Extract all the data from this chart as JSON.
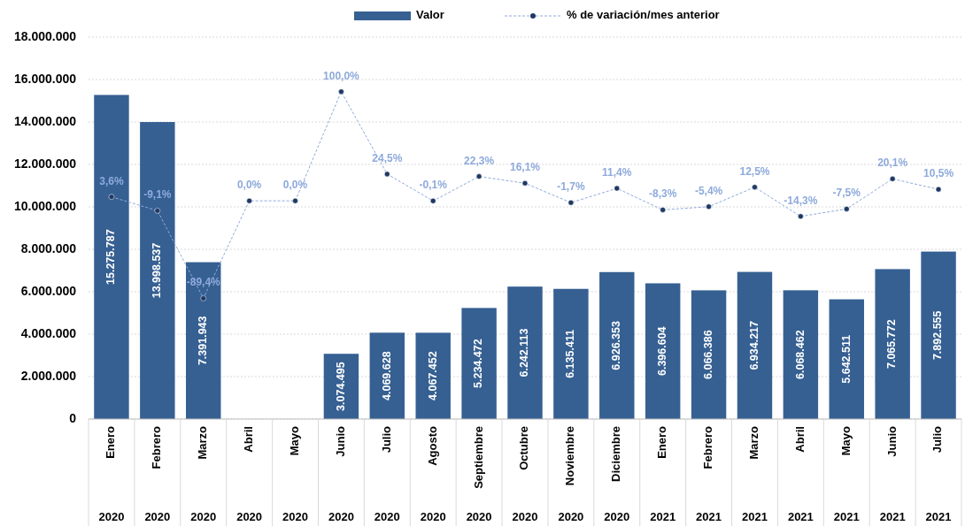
{
  "chart_data": {
    "type": "bar",
    "categories": [
      "Enero\n2020",
      "Febrero\n2020",
      "Marzo\n2020",
      "Abril\n2020",
      "Mayo\n2020",
      "Junio\n2020",
      "Julio\n2020",
      "Agosto\n2020",
      "Septiembre\n2020",
      "Octubre\n2020",
      "Noviembre\n2020",
      "Diciembre\n2020",
      "Enero\n2021",
      "Febrero\n2021",
      "Marzo\n2021",
      "Abril\n2021",
      "Mayo\n2021",
      "Junio\n2021",
      "Julio\n2021"
    ],
    "series": [
      {
        "name": "Valor",
        "color": "#366092",
        "values": [
          15275787,
          13998537,
          7391943,
          null,
          null,
          3074495,
          4069628,
          4067452,
          5234472,
          6242113,
          6135411,
          6926353,
          6396604,
          6066386,
          6934217,
          6068462,
          5642511,
          7065772,
          7892555
        ],
        "value_labels": [
          "15.275.787",
          "13.998.537",
          "7.391.943",
          null,
          null,
          "3.074.495",
          "4.069.628",
          "4.067.452",
          "5.234.472",
          "6.242.113",
          "6.135.411",
          "6.926.353",
          "6.396.604",
          "6.066.386",
          "6.934.217",
          "6.068.462",
          "5.642.511",
          "7.065.772",
          "7.892.555"
        ]
      },
      {
        "name": "% de variación/mes anterior",
        "type": "line",
        "axis": "y2",
        "color": "#8eaadb",
        "values": [
          3.6,
          -9.1,
          -89.4,
          0.0,
          0.0,
          100.0,
          24.5,
          -0.1,
          22.3,
          16.1,
          -1.7,
          11.4,
          -8.3,
          -5.4,
          12.5,
          -14.3,
          -7.5,
          20.1,
          10.5
        ],
        "value_labels": [
          "3,6%",
          "-9,1%",
          "-89,4%",
          "0,0%",
          "0,0%",
          "100,0%",
          "24,5%",
          "-0,1%",
          "22,3%",
          "16,1%",
          "-1,7%",
          "11,4%",
          "-8,3%",
          "-5,4%",
          "12,5%",
          "-14,3%",
          "-7,5%",
          "20,1%",
          "10,5%"
        ]
      }
    ],
    "ylim": [
      0,
      18000000
    ],
    "yticks": [
      0,
      {
        "value": 2000000,
        "label": "2.000.000"
      },
      {
        "value": 4000000,
        "label": "4.000.000"
      },
      {
        "value": 6000000,
        "label": "6.000.000"
      },
      {
        "value": 8000000,
        "label": "8.000.000"
      },
      {
        "value": 10000000,
        "label": "10.000.000"
      },
      {
        "value": 12000000,
        "label": "12.000.000"
      },
      {
        "value": 14000000,
        "label": "14.000.000"
      },
      {
        "value": 16000000,
        "label": "16.000.000"
      },
      {
        "value": 18000000,
        "label": "18.000.000"
      }
    ],
    "y2lim": [
      -200,
      150
    ],
    "tick_labels": "xy",
    "grid": "y",
    "legend": "top",
    "marker": "circle",
    "line_style": "dashed"
  }
}
